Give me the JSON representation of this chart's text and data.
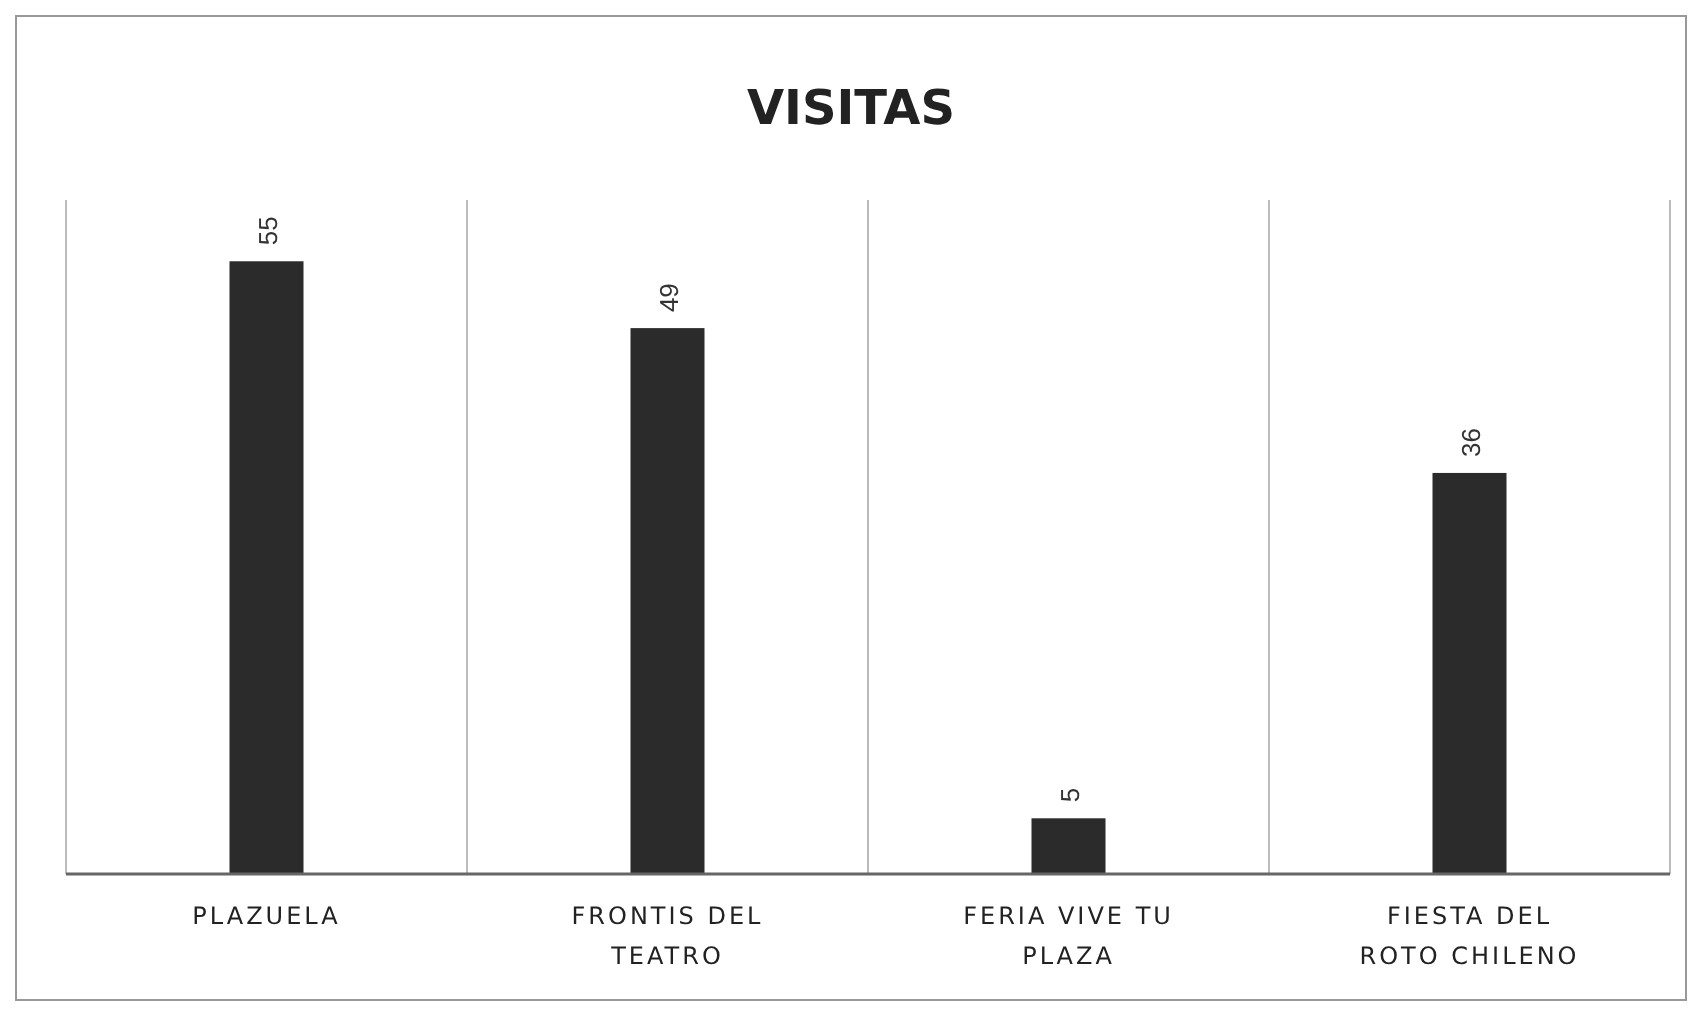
{
  "chart_data": {
    "type": "bar",
    "title": "VISITAS",
    "categories": [
      "PLAZUELA",
      "FRONTIS DEL TEATRO",
      "FERIA VIVE TU PLAZA",
      "FIESTA DEL ROTO CHILENO"
    ],
    "values": [
      55,
      49,
      5,
      36
    ],
    "color": "#2b2b2b",
    "data_labels": true,
    "grid": "x"
  }
}
